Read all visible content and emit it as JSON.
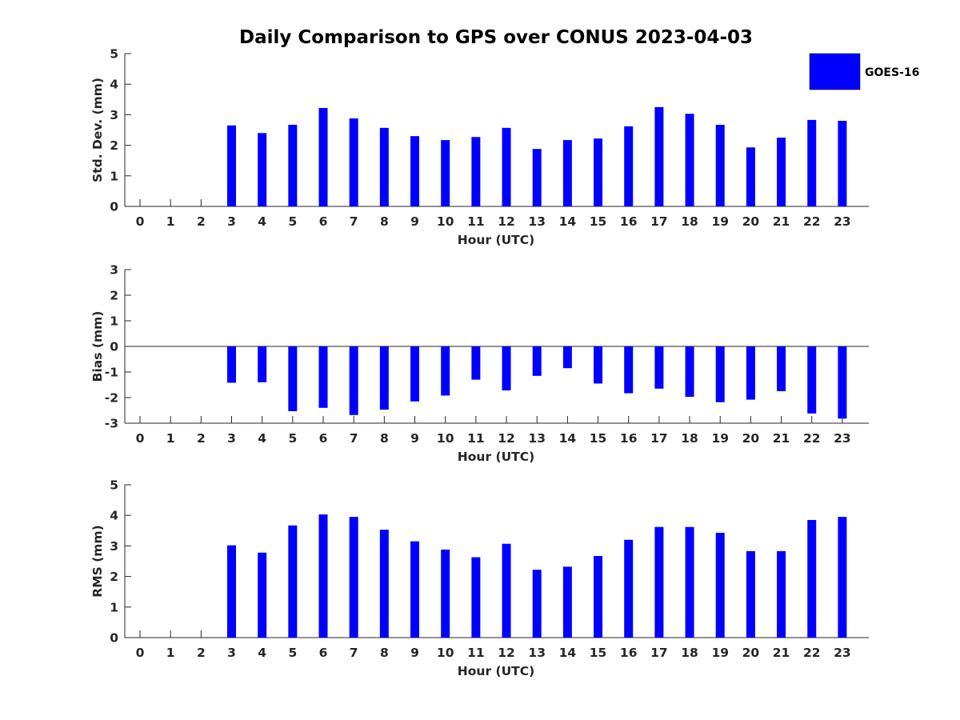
{
  "title": "Daily Comparison to GPS over CONUS 2023-04-03",
  "legend": {
    "label": "GOES-16",
    "color": "#0000ff",
    "placement": "top-right"
  },
  "chart_data": [
    {
      "type": "bar",
      "ylabel": "Std. Dev. (mm)",
      "xlabel": "Hour (UTC)",
      "ylim": [
        0,
        5
      ],
      "yticks": [
        0,
        1,
        2,
        3,
        4,
        5
      ],
      "categories": [
        0,
        1,
        2,
        3,
        4,
        5,
        6,
        7,
        8,
        9,
        10,
        11,
        12,
        13,
        14,
        15,
        16,
        17,
        18,
        19,
        20,
        21,
        22,
        23
      ],
      "series": [
        {
          "name": "GOES-16",
          "values": [
            null,
            null,
            null,
            2.65,
            2.4,
            2.67,
            3.22,
            2.88,
            2.57,
            2.3,
            2.17,
            2.27,
            2.57,
            1.88,
            2.17,
            2.22,
            2.62,
            3.25,
            3.03,
            2.67,
            1.93,
            2.25,
            2.83,
            2.8
          ]
        }
      ]
    },
    {
      "type": "bar",
      "ylabel": "Bias (mm)",
      "xlabel": "Hour (UTC)",
      "ylim": [
        -3,
        3
      ],
      "yticks": [
        -3,
        -2,
        -1,
        0,
        1,
        2,
        3
      ],
      "categories": [
        0,
        1,
        2,
        3,
        4,
        5,
        6,
        7,
        8,
        9,
        10,
        11,
        12,
        13,
        14,
        15,
        16,
        17,
        18,
        19,
        20,
        21,
        22,
        23
      ],
      "series": [
        {
          "name": "GOES-16",
          "values": [
            null,
            null,
            null,
            -1.42,
            -1.4,
            -2.53,
            -2.4,
            -2.68,
            -2.47,
            -2.15,
            -1.92,
            -1.3,
            -1.72,
            -1.15,
            -0.85,
            -1.45,
            -1.83,
            -1.65,
            -1.97,
            -2.18,
            -2.08,
            -1.75,
            -2.62,
            -2.82
          ]
        }
      ]
    },
    {
      "type": "bar",
      "ylabel": "RMS (mm)",
      "xlabel": "Hour (UTC)",
      "ylim": [
        0,
        5
      ],
      "yticks": [
        0,
        1,
        2,
        3,
        4,
        5
      ],
      "categories": [
        0,
        1,
        2,
        3,
        4,
        5,
        6,
        7,
        8,
        9,
        10,
        11,
        12,
        13,
        14,
        15,
        16,
        17,
        18,
        19,
        20,
        21,
        22,
        23
      ],
      "series": [
        {
          "name": "GOES-16",
          "values": [
            null,
            null,
            null,
            3.02,
            2.78,
            3.67,
            4.03,
            3.95,
            3.53,
            3.15,
            2.88,
            2.63,
            3.07,
            2.22,
            2.32,
            2.67,
            3.2,
            3.62,
            3.62,
            3.43,
            2.83,
            2.83,
            3.85,
            3.95
          ]
        }
      ]
    }
  ]
}
